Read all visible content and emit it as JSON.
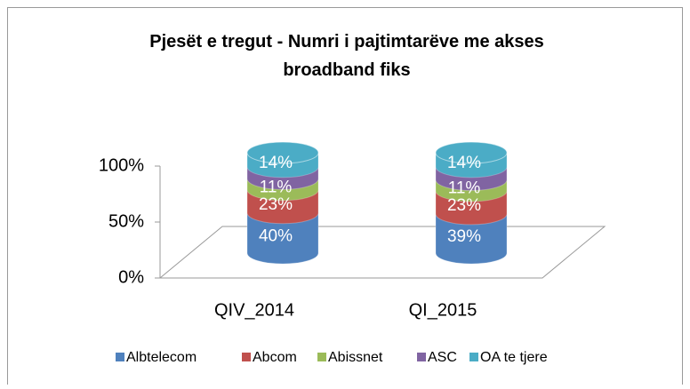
{
  "chart_data": {
    "type": "stacked-cylinder",
    "title": "Pjesët e tregut - Numri i pajtimtarëve me akses broadband fiks",
    "categories": [
      "QIV_2014",
      "QI_2015"
    ],
    "series": [
      {
        "name": "Albtelecom",
        "color": "#4f81bd",
        "values": [
          40,
          39
        ],
        "value_labels": [
          "40%",
          "39%"
        ]
      },
      {
        "name": "Abcom",
        "color": "#c0504d",
        "values": [
          23,
          23
        ],
        "value_labels": [
          "23%",
          "23%"
        ]
      },
      {
        "name": "Abissnet",
        "color": "#9bbb59",
        "values": [
          11,
          11
        ],
        "value_labels": [
          "11%",
          "11%"
        ]
      },
      {
        "name": "ASC",
        "color": "#8064a2",
        "values": [
          12,
          13
        ]
      },
      {
        "name": "OA te tjere",
        "color": "#4bacc6",
        "values": [
          14,
          14
        ],
        "value_labels": [
          "14%",
          "14%"
        ]
      }
    ],
    "ylim": [
      0,
      100
    ],
    "yticks": [
      {
        "value": 0,
        "label": "0%"
      },
      {
        "value": 50,
        "label": "50%"
      },
      {
        "value": 100,
        "label": "100%"
      }
    ],
    "legend": "bottom"
  }
}
